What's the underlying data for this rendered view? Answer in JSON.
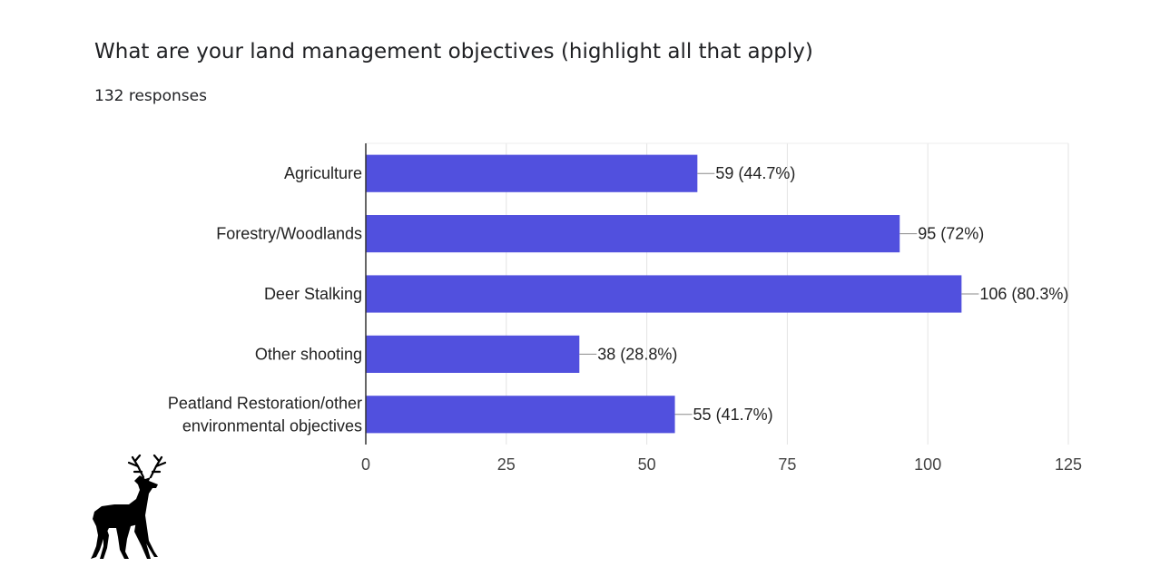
{
  "form": {
    "question": "What are your land management objectives (highlight all that apply)",
    "response_count": "132 responses"
  },
  "chart_data": {
    "type": "bar",
    "orientation": "horizontal",
    "categories": [
      [
        "Agriculture"
      ],
      [
        "Forestry/Woodlands"
      ],
      [
        "Deer Stalking"
      ],
      [
        "Other shooting"
      ],
      [
        "Peatland Restoration/other",
        "environmental objectives"
      ]
    ],
    "values": [
      59,
      95,
      106,
      38,
      55
    ],
    "data_labels": [
      "59 (44.7%)",
      "95 (72%)",
      "106 (80.3%)",
      "38 (28.8%)",
      "55 (41.7%)"
    ],
    "xlim": [
      0,
      125
    ],
    "xticks": [
      0,
      25,
      50,
      75,
      100,
      125
    ],
    "grid": true,
    "bar_color": "#5150de"
  },
  "decoration": {
    "logo": "deer-silhouette-icon"
  }
}
